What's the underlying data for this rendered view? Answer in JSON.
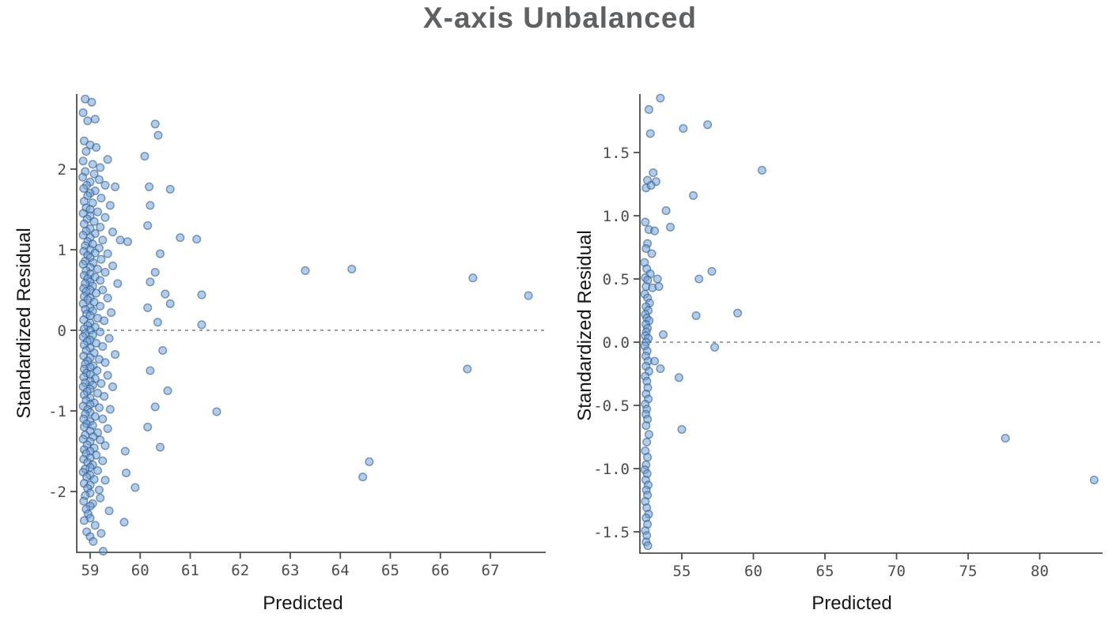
{
  "page_title": "X-axis Unbalanced",
  "colors": {
    "background": "#ffffff",
    "title": "#5e6062",
    "axis_line": "#4d4d4d",
    "tick_label": "#4c4c4c",
    "axis_label": "#161616",
    "marker_fill": "#74a3d4",
    "marker_stroke": "#2e5e92",
    "zero_line": "#808080"
  },
  "chart_data": [
    {
      "type": "scatter",
      "panel": "left",
      "title": "",
      "xlabel": "Predicted",
      "ylabel": "Standardized Residual",
      "xlim": [
        58.73,
        68.1
      ],
      "ylim": [
        -2.76,
        2.93
      ],
      "grid": false,
      "legend": "none",
      "x_tick_values": [
        59,
        60,
        61,
        62,
        63,
        64,
        65,
        66,
        67
      ],
      "x_tick_labels": [
        "59",
        "60",
        "61",
        "62",
        "63",
        "64",
        "65",
        "66",
        "67"
      ],
      "y_tick_values": [
        2,
        1,
        0,
        -1,
        -2
      ],
      "y_tick_labels": [
        "2",
        "1",
        "0",
        "-1",
        "-2"
      ],
      "zero_line_y": 0,
      "points": [
        [
          58.9,
          2.87
        ],
        [
          59.03,
          2.83
        ],
        [
          58.86,
          2.7
        ],
        [
          59.1,
          2.62
        ],
        [
          58.95,
          2.6
        ],
        [
          60.3,
          2.56
        ],
        [
          60.36,
          2.42
        ],
        [
          58.88,
          2.35
        ],
        [
          59.0,
          2.3
        ],
        [
          59.12,
          2.27
        ],
        [
          58.92,
          2.22
        ],
        [
          60.09,
          2.16
        ],
        [
          59.35,
          2.12
        ],
        [
          58.86,
          2.1
        ],
        [
          59.05,
          2.06
        ],
        [
          59.2,
          2.02
        ],
        [
          58.9,
          1.97
        ],
        [
          59.08,
          1.94
        ],
        [
          58.85,
          1.9
        ],
        [
          59.18,
          1.87
        ],
        [
          59.0,
          1.84
        ],
        [
          58.93,
          1.8
        ],
        [
          59.3,
          1.8
        ],
        [
          59.5,
          1.78
        ],
        [
          60.18,
          1.78
        ],
        [
          60.6,
          1.75
        ],
        [
          58.87,
          1.76
        ],
        [
          59.1,
          1.73
        ],
        [
          59.0,
          1.7
        ],
        [
          58.95,
          1.67
        ],
        [
          59.22,
          1.64
        ],
        [
          58.88,
          1.6
        ],
        [
          59.05,
          1.58
        ],
        [
          59.4,
          1.55
        ],
        [
          60.2,
          1.55
        ],
        [
          58.92,
          1.52
        ],
        [
          59.0,
          1.5
        ],
        [
          59.15,
          1.47
        ],
        [
          58.86,
          1.45
        ],
        [
          59.0,
          1.42
        ],
        [
          59.3,
          1.4
        ],
        [
          58.94,
          1.38
        ],
        [
          59.08,
          1.35
        ],
        [
          58.88,
          1.32
        ],
        [
          60.15,
          1.3
        ],
        [
          59.2,
          1.28
        ],
        [
          59.0,
          1.26
        ],
        [
          58.92,
          1.23
        ],
        [
          59.45,
          1.22
        ],
        [
          59.1,
          1.2
        ],
        [
          58.86,
          1.18
        ],
        [
          59.0,
          1.15
        ],
        [
          60.8,
          1.15
        ],
        [
          61.13,
          1.13
        ],
        [
          59.25,
          1.12
        ],
        [
          58.95,
          1.1
        ],
        [
          59.6,
          1.12
        ],
        [
          59.75,
          1.1
        ],
        [
          59.05,
          1.07
        ],
        [
          58.9,
          1.05
        ],
        [
          59.18,
          1.02
        ],
        [
          59.0,
          1.0
        ],
        [
          58.87,
          0.98
        ],
        [
          59.1,
          0.96
        ],
        [
          59.35,
          0.95
        ],
        [
          60.4,
          0.95
        ],
        [
          58.95,
          0.93
        ],
        [
          59.0,
          0.9
        ],
        [
          59.22,
          0.88
        ],
        [
          58.9,
          0.86
        ],
        [
          59.06,
          0.84
        ],
        [
          58.86,
          0.82
        ],
        [
          59.45,
          0.8
        ],
        [
          59.0,
          0.78
        ],
        [
          59.15,
          0.76
        ],
        [
          64.23,
          0.76
        ],
        [
          63.3,
          0.74
        ],
        [
          58.92,
          0.74
        ],
        [
          59.3,
          0.72
        ],
        [
          60.3,
          0.72
        ],
        [
          59.0,
          0.7
        ],
        [
          58.88,
          0.68
        ],
        [
          59.1,
          0.66
        ],
        [
          66.65,
          0.65
        ],
        [
          58.95,
          0.64
        ],
        [
          59.2,
          0.62
        ],
        [
          59.0,
          0.6
        ],
        [
          60.2,
          0.6
        ],
        [
          58.9,
          0.58
        ],
        [
          59.55,
          0.58
        ],
        [
          59.05,
          0.55
        ],
        [
          58.87,
          0.52
        ],
        [
          59.25,
          0.5
        ],
        [
          59.0,
          0.5
        ],
        [
          58.92,
          0.48
        ],
        [
          59.12,
          0.46
        ],
        [
          67.76,
          0.43
        ],
        [
          61.23,
          0.44
        ],
        [
          60.5,
          0.45
        ],
        [
          58.88,
          0.42
        ],
        [
          59.0,
          0.4
        ],
        [
          59.35,
          0.4
        ],
        [
          58.95,
          0.38
        ],
        [
          59.08,
          0.35
        ],
        [
          58.86,
          0.33
        ],
        [
          60.6,
          0.33
        ],
        [
          59.2,
          0.3
        ],
        [
          59.0,
          0.28
        ],
        [
          60.15,
          0.28
        ],
        [
          58.9,
          0.26
        ],
        [
          59.05,
          0.24
        ],
        [
          59.42,
          0.22
        ],
        [
          58.93,
          0.2
        ],
        [
          59.0,
          0.18
        ],
        [
          59.15,
          0.15
        ],
        [
          58.87,
          0.13
        ],
        [
          59.28,
          0.12
        ],
        [
          60.35,
          0.1
        ],
        [
          59.0,
          0.09
        ],
        [
          61.23,
          0.07
        ],
        [
          58.95,
          0.06
        ],
        [
          59.1,
          0.04
        ],
        [
          58.88,
          0.02
        ],
        [
          59.0,
          0.0
        ],
        [
          59.2,
          -0.02
        ],
        [
          58.9,
          -0.04
        ],
        [
          59.05,
          -0.06
        ],
        [
          58.86,
          -0.08
        ],
        [
          59.38,
          -0.1
        ],
        [
          59.0,
          -0.12
        ],
        [
          58.94,
          -0.14
        ],
        [
          59.12,
          -0.16
        ],
        [
          58.88,
          -0.18
        ],
        [
          59.25,
          -0.2
        ],
        [
          60.45,
          -0.25
        ],
        [
          59.0,
          -0.22
        ],
        [
          58.92,
          -0.25
        ],
        [
          59.08,
          -0.28
        ],
        [
          59.5,
          -0.3
        ],
        [
          58.87,
          -0.32
        ],
        [
          59.0,
          -0.34
        ],
        [
          59.18,
          -0.36
        ],
        [
          58.95,
          -0.38
        ],
        [
          59.3,
          -0.4
        ],
        [
          58.9,
          -0.42
        ],
        [
          59.06,
          -0.44
        ],
        [
          59.0,
          -0.46
        ],
        [
          66.54,
          -0.48
        ],
        [
          58.88,
          -0.48
        ],
        [
          59.14,
          -0.5
        ],
        [
          60.2,
          -0.5
        ],
        [
          58.93,
          -0.53
        ],
        [
          59.0,
          -0.55
        ],
        [
          59.35,
          -0.56
        ],
        [
          58.87,
          -0.58
        ],
        [
          59.1,
          -0.6
        ],
        [
          59.0,
          -0.63
        ],
        [
          58.9,
          -0.65
        ],
        [
          59.22,
          -0.66
        ],
        [
          59.05,
          -0.68
        ],
        [
          58.86,
          -0.7
        ],
        [
          59.45,
          -0.7
        ],
        [
          59.0,
          -0.73
        ],
        [
          60.55,
          -0.75
        ],
        [
          58.94,
          -0.76
        ],
        [
          59.15,
          -0.78
        ],
        [
          58.88,
          -0.8
        ],
        [
          59.28,
          -0.82
        ],
        [
          59.0,
          -0.84
        ],
        [
          58.92,
          -0.87
        ],
        [
          59.08,
          -0.9
        ],
        [
          59.0,
          -0.92
        ],
        [
          58.86,
          -0.94
        ],
        [
          60.3,
          -0.95
        ],
        [
          59.18,
          -0.96
        ],
        [
          58.95,
          -0.98
        ],
        [
          59.4,
          -0.98
        ],
        [
          61.53,
          -1.01
        ],
        [
          59.0,
          -1.02
        ],
        [
          58.9,
          -1.04
        ],
        [
          59.1,
          -1.07
        ],
        [
          58.87,
          -1.1
        ],
        [
          59.25,
          -1.1
        ],
        [
          59.0,
          -1.13
        ],
        [
          58.93,
          -1.16
        ],
        [
          59.05,
          -1.18
        ],
        [
          60.15,
          -1.2
        ],
        [
          58.88,
          -1.2
        ],
        [
          59.35,
          -1.22
        ],
        [
          59.0,
          -1.25
        ],
        [
          59.15,
          -1.27
        ],
        [
          58.9,
          -1.3
        ],
        [
          59.06,
          -1.32
        ],
        [
          58.86,
          -1.35
        ],
        [
          59.2,
          -1.36
        ],
        [
          59.0,
          -1.38
        ],
        [
          58.94,
          -1.42
        ],
        [
          59.3,
          -1.43
        ],
        [
          60.4,
          -1.45
        ],
        [
          59.08,
          -1.46
        ],
        [
          58.88,
          -1.48
        ],
        [
          59.7,
          -1.5
        ],
        [
          59.0,
          -1.5
        ],
        [
          58.92,
          -1.53
        ],
        [
          59.12,
          -1.55
        ],
        [
          59.0,
          -1.58
        ],
        [
          58.87,
          -1.6
        ],
        [
          59.25,
          -1.62
        ],
        [
          64.58,
          -1.63
        ],
        [
          58.95,
          -1.64
        ],
        [
          59.05,
          -1.67
        ],
        [
          59.0,
          -1.7
        ],
        [
          58.9,
          -1.72
        ],
        [
          59.15,
          -1.74
        ],
        [
          58.86,
          -1.76
        ],
        [
          59.72,
          -1.77
        ],
        [
          59.0,
          -1.8
        ],
        [
          64.45,
          -1.82
        ],
        [
          58.93,
          -1.82
        ],
        [
          59.08,
          -1.85
        ],
        [
          59.3,
          -1.86
        ],
        [
          58.88,
          -1.9
        ],
        [
          59.0,
          -1.92
        ],
        [
          59.9,
          -1.95
        ],
        [
          58.95,
          -1.96
        ],
        [
          59.18,
          -1.98
        ],
        [
          59.0,
          -2.02
        ],
        [
          58.9,
          -2.05
        ],
        [
          59.2,
          -2.08
        ],
        [
          58.87,
          -2.12
        ],
        [
          59.05,
          -2.15
        ],
        [
          59.0,
          -2.18
        ],
        [
          58.92,
          -2.22
        ],
        [
          59.38,
          -2.24
        ],
        [
          58.96,
          -2.28
        ],
        [
          59.0,
          -2.33
        ],
        [
          58.88,
          -2.36
        ],
        [
          59.68,
          -2.38
        ],
        [
          59.1,
          -2.42
        ],
        [
          58.93,
          -2.5
        ],
        [
          59.22,
          -2.52
        ],
        [
          59.0,
          -2.56
        ],
        [
          59.06,
          -2.62
        ],
        [
          59.26,
          -2.74
        ]
      ]
    },
    {
      "type": "scatter",
      "panel": "right",
      "title": "",
      "xlabel": "Predicted",
      "ylabel": "Standardized Residual",
      "xlim": [
        52.1,
        84.4
      ],
      "ylim": [
        -1.69,
        1.96
      ],
      "grid": false,
      "legend": "none",
      "x_tick_values": [
        55,
        60,
        65,
        70,
        75,
        80
      ],
      "x_tick_labels": [
        "55",
        "60",
        "65",
        "70",
        "75",
        "80"
      ],
      "y_tick_values": [
        1.5,
        1.0,
        0.5,
        0.0,
        -0.5,
        -1.0,
        -1.5
      ],
      "y_tick_labels": [
        "1.5",
        "1.0",
        "0.5",
        "0.0",
        "-0.5",
        "-1.0",
        "-1.5"
      ],
      "zero_line_y": 0,
      "points": [
        [
          53.5,
          1.93
        ],
        [
          52.7,
          1.84
        ],
        [
          56.8,
          1.72
        ],
        [
          55.1,
          1.69
        ],
        [
          52.8,
          1.65
        ],
        [
          60.6,
          1.36
        ],
        [
          53.0,
          1.34
        ],
        [
          52.6,
          1.28
        ],
        [
          53.2,
          1.27
        ],
        [
          52.5,
          1.22
        ],
        [
          52.85,
          1.24
        ],
        [
          55.8,
          1.16
        ],
        [
          53.9,
          1.04
        ],
        [
          54.2,
          0.91
        ],
        [
          52.7,
          0.89
        ],
        [
          53.1,
          0.88
        ],
        [
          57.1,
          0.56
        ],
        [
          56.2,
          0.5
        ],
        [
          56.0,
          0.21
        ],
        [
          58.9,
          0.23
        ],
        [
          57.3,
          -0.04
        ],
        [
          53.7,
          0.06
        ],
        [
          53.5,
          -0.21
        ],
        [
          54.8,
          -0.28
        ],
        [
          55.0,
          -0.69
        ],
        [
          77.6,
          -0.76
        ],
        [
          83.8,
          -1.09
        ],
        [
          52.45,
          0.95
        ],
        [
          52.6,
          0.78
        ],
        [
          52.5,
          0.74
        ],
        [
          52.9,
          0.7
        ],
        [
          52.4,
          0.63
        ],
        [
          52.55,
          0.58
        ],
        [
          52.8,
          0.54
        ],
        [
          52.45,
          0.51
        ],
        [
          52.62,
          0.49
        ],
        [
          53.3,
          0.5
        ],
        [
          52.5,
          0.44
        ],
        [
          52.95,
          0.43
        ],
        [
          53.4,
          0.44
        ],
        [
          52.42,
          0.38
        ],
        [
          52.6,
          0.35
        ],
        [
          52.75,
          0.31
        ],
        [
          52.5,
          0.28
        ],
        [
          52.65,
          0.25
        ],
        [
          52.45,
          0.22
        ],
        [
          52.55,
          0.19
        ],
        [
          52.72,
          0.17
        ],
        [
          52.48,
          0.14
        ],
        [
          52.6,
          0.11
        ],
        [
          52.52,
          0.08
        ],
        [
          52.45,
          0.05
        ],
        [
          52.66,
          0.03
        ],
        [
          52.5,
          0.0
        ],
        [
          52.42,
          -0.03
        ],
        [
          52.58,
          -0.07
        ],
        [
          52.48,
          -0.11
        ],
        [
          52.64,
          -0.15
        ],
        [
          53.1,
          -0.15
        ],
        [
          52.5,
          -0.19
        ],
        [
          52.7,
          -0.23
        ],
        [
          52.45,
          -0.27
        ],
        [
          52.56,
          -0.31
        ],
        [
          52.62,
          -0.36
        ],
        [
          52.5,
          -0.41
        ],
        [
          52.66,
          -0.45
        ],
        [
          52.45,
          -0.49
        ],
        [
          52.55,
          -0.53
        ],
        [
          52.48,
          -0.57
        ],
        [
          52.6,
          -0.61
        ],
        [
          52.5,
          -0.66
        ],
        [
          52.7,
          -0.73
        ],
        [
          52.55,
          -0.79
        ],
        [
          52.45,
          -0.86
        ],
        [
          52.6,
          -0.91
        ],
        [
          52.5,
          -0.97
        ],
        [
          52.42,
          -1.01
        ],
        [
          52.58,
          -1.04
        ],
        [
          52.48,
          -1.09
        ],
        [
          52.65,
          -1.13
        ],
        [
          52.52,
          -1.17
        ],
        [
          52.6,
          -1.21
        ],
        [
          52.45,
          -1.26
        ],
        [
          52.55,
          -1.31
        ],
        [
          52.68,
          -1.36
        ],
        [
          52.5,
          -1.39
        ],
        [
          52.6,
          -1.44
        ],
        [
          52.45,
          -1.49
        ],
        [
          52.55,
          -1.53
        ],
        [
          52.5,
          -1.58
        ],
        [
          52.63,
          -1.61
        ]
      ]
    }
  ]
}
